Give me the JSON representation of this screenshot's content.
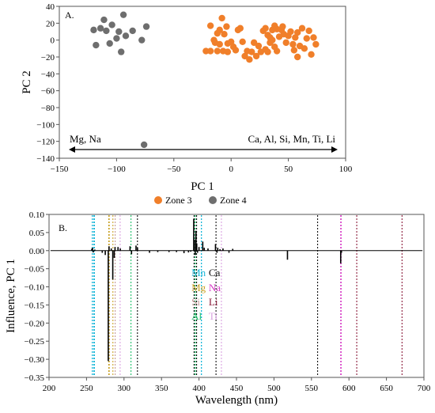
{
  "chart_data": [
    {
      "type": "scatter",
      "panel_label": "A.",
      "xlabel": "PC 1",
      "ylabel": "PC 2",
      "xlim": [
        -150,
        100
      ],
      "ylim": [
        -140,
        40
      ],
      "xticks": [
        -150,
        -100,
        -50,
        0,
        50,
        100
      ],
      "xtick_labels": [
        "−150",
        "−100",
        "−50",
        "0",
        "50",
        "100"
      ],
      "yticks": [
        -140,
        -120,
        -100,
        -80,
        -60,
        -40,
        -20,
        0,
        20,
        40
      ],
      "ytick_labels": [
        "−140",
        "−120",
        "−100",
        "−80",
        "−60",
        "−40",
        "−20",
        "0",
        "20",
        "40"
      ],
      "grid": false,
      "legend_position": "below",
      "series": [
        {
          "name": "Zone 3",
          "color": "#F07F2A",
          "points": [
            [
              -18,
              17
            ],
            [
              -14,
              -3
            ],
            [
              -12,
              8
            ],
            [
              -10,
              12
            ],
            [
              -8,
              26
            ],
            [
              -6,
              7
            ],
            [
              -4,
              16
            ],
            [
              -3,
              -4
            ],
            [
              -22,
              -13
            ],
            [
              -18,
              -13
            ],
            [
              -15,
              0
            ],
            [
              -12,
              -13
            ],
            [
              -10,
              -5
            ],
            [
              -7,
              -13
            ],
            [
              -3,
              -14
            ],
            [
              0,
              -2
            ],
            [
              2,
              -8
            ],
            [
              4,
              -12
            ],
            [
              6,
              12
            ],
            [
              8,
              14
            ],
            [
              10,
              -2
            ],
            [
              12,
              -19
            ],
            [
              14,
              -13
            ],
            [
              16,
              -23
            ],
            [
              18,
              -14
            ],
            [
              20,
              -3
            ],
            [
              22,
              -19
            ],
            [
              24,
              -7
            ],
            [
              26,
              -14
            ],
            [
              28,
              11
            ],
            [
              30,
              14
            ],
            [
              32,
              6
            ],
            [
              34,
              3
            ],
            [
              36,
              12
            ],
            [
              38,
              17
            ],
            [
              40,
              13
            ],
            [
              30,
              -11
            ],
            [
              32,
              -14
            ],
            [
              34,
              -3
            ],
            [
              36,
              0
            ],
            [
              38,
              -8
            ],
            [
              40,
              -13
            ],
            [
              42,
              4
            ],
            [
              44,
              12
            ],
            [
              46,
              7
            ],
            [
              48,
              -3
            ],
            [
              50,
              5
            ],
            [
              52,
              10
            ],
            [
              54,
              -5
            ],
            [
              56,
              3
            ],
            [
              58,
              9
            ],
            [
              60,
              -7
            ],
            [
              62,
              14
            ],
            [
              64,
              -10
            ],
            [
              66,
              2
            ],
            [
              68,
              11
            ],
            [
              70,
              -17
            ],
            [
              72,
              3
            ],
            [
              74,
              -5
            ],
            [
              45,
              16
            ],
            [
              55,
              -12
            ],
            [
              58,
              -20
            ]
          ]
        },
        {
          "name": "Zone 4",
          "color": "#6E6E6E",
          "points": [
            [
              -120,
              12
            ],
            [
              -118,
              -6
            ],
            [
              -114,
              14
            ],
            [
              -111,
              24
            ],
            [
              -109,
              11
            ],
            [
              -106,
              -4
            ],
            [
              -104,
              18
            ],
            [
              -100,
              2
            ],
            [
              -98,
              10
            ],
            [
              -96,
              -14
            ],
            [
              -94,
              30
            ],
            [
              -92,
              5
            ],
            [
              -86,
              11
            ],
            [
              -78,
              0
            ],
            [
              -74,
              16
            ],
            [
              -76,
              -124
            ]
          ]
        }
      ],
      "annotations": [
        {
          "text": "Mg, Na",
          "side": "left"
        },
        {
          "text": "Ca, Al, Si, Mn, Ti, Li",
          "side": "right"
        }
      ]
    },
    {
      "type": "line",
      "panel_label": "B.",
      "xlabel": "Wavelength (nm)",
      "ylabel": "Influence, PC 1",
      "xlim": [
        200,
        700
      ],
      "ylim": [
        -0.35,
        0.1
      ],
      "xticks": [
        200,
        250,
        300,
        350,
        400,
        450,
        500,
        550,
        600,
        650,
        700
      ],
      "xtick_labels": [
        "200",
        "250",
        "300",
        "350",
        "400",
        "450",
        "500",
        "550",
        "600",
        "650",
        "700"
      ],
      "yticks": [
        0.1,
        0.05,
        0.0,
        -0.05,
        -0.1,
        -0.15,
        -0.2,
        -0.25,
        -0.3,
        -0.35
      ],
      "ytick_labels": [
        "0.10",
        "0.05",
        "0.00",
        "−0.05",
        "−0.10",
        "−0.15",
        "−0.20",
        "−0.25",
        "−0.30",
        "−0.35"
      ],
      "grid": false,
      "spikes": [
        [
          257,
          0.005
        ],
        [
          258,
          0.008
        ],
        [
          259,
          -0.005
        ],
        [
          261,
          0.003
        ],
        [
          271,
          -0.006
        ],
        [
          275,
          -0.012
        ],
        [
          279,
          -0.305
        ],
        [
          280,
          0.012
        ],
        [
          283,
          0.006
        ],
        [
          285,
          -0.08
        ],
        [
          287,
          -0.02
        ],
        [
          288,
          0.01
        ],
        [
          292,
          0.01
        ],
        [
          295,
          0.006
        ],
        [
          308,
          0.012
        ],
        [
          310,
          -0.01
        ],
        [
          316,
          0.014
        ],
        [
          318,
          0.008
        ],
        [
          334,
          -0.006
        ],
        [
          345,
          -0.004
        ],
        [
          360,
          -0.004
        ],
        [
          370,
          -0.004
        ],
        [
          380,
          -0.007
        ],
        [
          386,
          -0.005
        ],
        [
          389,
          -0.003
        ],
        [
          393,
          0.088
        ],
        [
          394,
          0.03
        ],
        [
          395,
          -0.012
        ],
        [
          396,
          0.055
        ],
        [
          397,
          0.02
        ],
        [
          398,
          -0.006
        ],
        [
          400,
          0.01
        ],
        [
          405,
          0.025
        ],
        [
          407,
          0.008
        ],
        [
          412,
          0.006
        ],
        [
          422,
          0.018
        ],
        [
          424,
          -0.006
        ],
        [
          425,
          0.008
        ],
        [
          428,
          0.004
        ],
        [
          432,
          0.006
        ],
        [
          440,
          -0.006
        ],
        [
          445,
          0.005
        ],
        [
          518,
          -0.025
        ],
        [
          589,
          -0.035
        ],
        [
          590,
          -0.006
        ]
      ],
      "reference_lines": [
        {
          "element": "Mn",
          "color": "#19B7D9",
          "wavelengths": [
            257.6,
            259.4,
            260.6,
            403.1,
            403.3
          ]
        },
        {
          "element": "Mg",
          "color": "#C9A227",
          "wavelengths": [
            279.6,
            280.3,
            285.2
          ]
        },
        {
          "element": "Si",
          "color": "#C79A9A",
          "wavelengths": [
            288.2
          ]
        },
        {
          "element": "Al",
          "color": "#1FBF6A",
          "wavelengths": [
            309.3,
            396.2,
            394.4
          ]
        },
        {
          "element": "Ca",
          "color": "#111111",
          "wavelengths": [
            317.9,
            393.4,
            396.8,
            422.7,
            558.2
          ]
        },
        {
          "element": "Na",
          "color": "#D63AC6",
          "wavelengths": [
            589.0,
            589.6
          ]
        },
        {
          "element": "Li",
          "color": "#8B1A3A",
          "wavelengths": [
            610.4,
            670.8
          ]
        },
        {
          "element": "Ti",
          "color": "#D9A2E0",
          "wavelengths": [
            294.8,
            429.9
          ]
        }
      ],
      "element_labels": [
        {
          "text": "Mn",
          "color": "#19B7D9",
          "col": 0,
          "row": 0
        },
        {
          "text": "Ca",
          "color": "#111111",
          "col": 1,
          "row": 0
        },
        {
          "text": "Mg",
          "color": "#C9A227",
          "col": 0,
          "row": 1
        },
        {
          "text": "Na",
          "color": "#D63AC6",
          "col": 1,
          "row": 1
        },
        {
          "text": "Si",
          "color": "#C79A9A",
          "col": 0,
          "row": 2
        },
        {
          "text": "Li",
          "color": "#8B1A3A",
          "col": 1,
          "row": 2
        },
        {
          "text": "Al",
          "color": "#1FBF6A",
          "col": 0,
          "row": 3
        },
        {
          "text": "Ti",
          "color": "#D9A2E0",
          "col": 1,
          "row": 3
        }
      ]
    }
  ]
}
